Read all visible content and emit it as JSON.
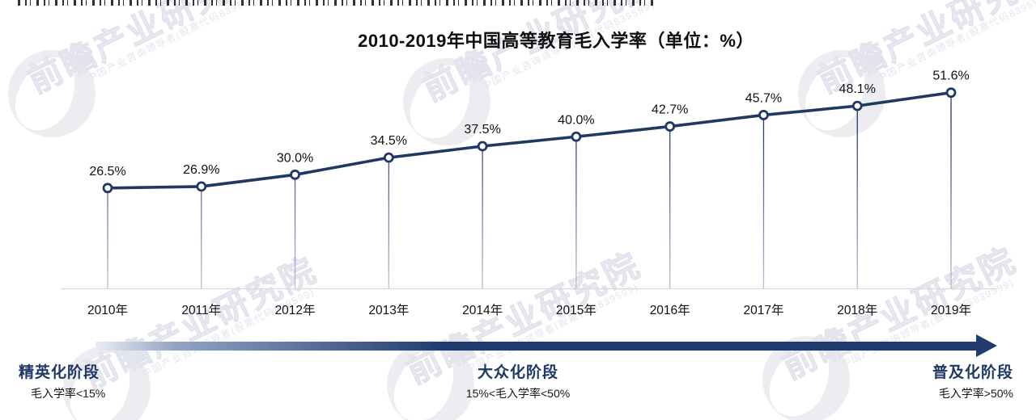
{
  "page": {
    "title": "2010-2019年中国高等教育毛入学率（单位：%）"
  },
  "watermark": {
    "brand": "前瞻产业研究院",
    "tagline": "中国产业咨询领导者(股票代码839599)"
  },
  "chart_data": {
    "type": "line",
    "title": "2010-2019年中国高等教育毛入学率（单位：%）",
    "categories": [
      "2010年",
      "2011年",
      "2012年",
      "2013年",
      "2014年",
      "2015年",
      "2016年",
      "2017年",
      "2018年",
      "2019年"
    ],
    "values": [
      26.5,
      26.9,
      30.0,
      34.5,
      37.5,
      40.0,
      42.7,
      45.7,
      48.1,
      51.6
    ],
    "labels": [
      "26.5%",
      "26.9%",
      "30.0%",
      "34.5%",
      "37.5%",
      "40.0%",
      "42.7%",
      "45.7%",
      "48.1%",
      "51.6%"
    ],
    "unit": "%",
    "xlabel": "",
    "ylabel": "",
    "ylim": [
      0,
      55
    ],
    "grid": false,
    "legend": false,
    "line_color": "#1f3864",
    "marker_fill": "#ffffff",
    "axis_color": "#d9d9d9",
    "label_color": "#111111"
  },
  "stages": {
    "arrow_color": "#1e3a6e",
    "items": [
      {
        "name": "精英化阶段",
        "range": "毛入学率<15%"
      },
      {
        "name": "大众化阶段",
        "range": "15%<毛入学率<50%"
      },
      {
        "name": "普及化阶段",
        "range": "毛入学率>50%"
      }
    ]
  }
}
